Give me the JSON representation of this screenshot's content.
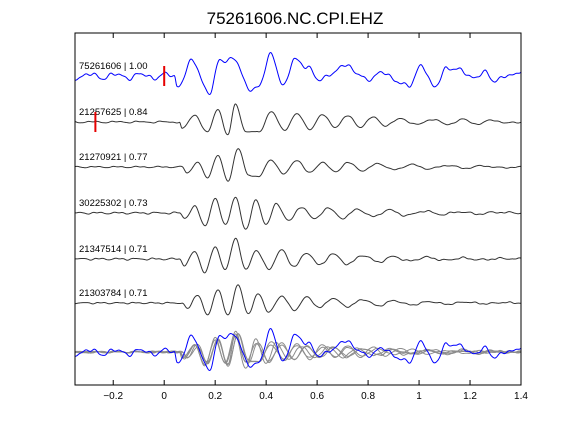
{
  "chart_data": {
    "type": "line",
    "title": "75261606.NC.CPI.EHZ",
    "xlabel": "",
    "ylabel": "",
    "xlim": [
      -0.35,
      1.4
    ],
    "xticks": [
      -0.2,
      0,
      0.2,
      0.4,
      0.6,
      0.8,
      1,
      1.2,
      1.4
    ],
    "xtick_labels": [
      "−0.2",
      "0",
      "0.2",
      "0.4",
      "0.6",
      "0.8",
      "1",
      "1.2",
      "1.4"
    ],
    "grid": false,
    "legend": "none",
    "colors": {
      "reference": "#0000ff",
      "match": "#333333",
      "stack": "#8c8c8c",
      "pick": "#e60000"
    },
    "series": [
      {
        "name": "75261606 | 1.00",
        "color": "#0000ff",
        "pick_time": 0.0,
        "onset": 0.04,
        "noise": 0.18,
        "amplitude": 1.0,
        "waveform": {
          "t": [
            0.05,
            0.11,
            0.18,
            0.22,
            0.27,
            0.33,
            0.37,
            0.42,
            0.47,
            0.51,
            0.56,
            0.61,
            0.66,
            0.71,
            0.76,
            0.8,
            0.86,
            0.91,
            0.96,
            1.01,
            1.06,
            1.11,
            1.16,
            1.21,
            1.26,
            1.3,
            1.35,
            1.4
          ],
          "a": [
            -0.35,
            0.5,
            -0.6,
            0.55,
            0.75,
            -0.5,
            -0.35,
            0.75,
            -0.3,
            0.55,
            0.45,
            -0.25,
            0.2,
            0.35,
            0.2,
            -0.25,
            0.25,
            -0.3,
            -0.28,
            0.3,
            -0.32,
            0.2,
            0.35,
            -0.18,
            0.25,
            -0.3,
            0.1,
            0.12
          ]
        }
      },
      {
        "name": "21257625 | 0.84",
        "color": "#333333",
        "pick_time": -0.27,
        "onset": 0.06,
        "noise": 0.05,
        "amplitude": 0.9,
        "waveform": {
          "t": [
            0.07,
            0.12,
            0.17,
            0.21,
            0.25,
            0.28,
            0.32,
            0.37,
            0.42,
            0.47,
            0.52,
            0.57,
            0.62,
            0.67,
            0.72,
            0.77,
            0.82,
            0.87,
            0.93,
            0.99,
            1.05,
            1.11,
            1.17,
            1.23,
            1.29,
            1.35,
            1.4
          ],
          "a": [
            -0.3,
            0.3,
            -0.45,
            0.55,
            -0.55,
            0.75,
            -0.4,
            -0.45,
            0.45,
            -0.35,
            0.35,
            -0.3,
            0.3,
            -0.2,
            0.25,
            -0.2,
            0.2,
            -0.15,
            0.15,
            -0.12,
            0.12,
            -0.1,
            0.1,
            -0.08,
            0.08,
            -0.05,
            0.0
          ]
        }
      },
      {
        "name": "21270921 | 0.77",
        "color": "#333333",
        "pick_time": null,
        "onset": 0.07,
        "noise": 0.04,
        "amplitude": 0.9,
        "waveform": {
          "t": [
            0.09,
            0.13,
            0.17,
            0.21,
            0.25,
            0.29,
            0.33,
            0.37,
            0.42,
            0.47,
            0.52,
            0.57,
            0.62,
            0.67,
            0.72,
            0.78,
            0.84,
            0.9,
            0.97,
            1.04,
            1.11,
            1.18,
            1.25,
            1.32,
            1.4
          ],
          "a": [
            -0.25,
            0.2,
            -0.45,
            0.5,
            -0.6,
            0.8,
            -0.35,
            -0.4,
            0.3,
            -0.3,
            0.3,
            -0.25,
            0.2,
            -0.2,
            0.18,
            -0.15,
            0.15,
            -0.12,
            0.1,
            -0.08,
            0.07,
            -0.05,
            0.05,
            -0.03,
            0.0
          ]
        }
      },
      {
        "name": "30225302 | 0.73",
        "color": "#333333",
        "pick_time": null,
        "onset": 0.06,
        "noise": 0.05,
        "amplitude": 0.95,
        "waveform": {
          "t": [
            0.08,
            0.12,
            0.16,
            0.2,
            0.24,
            0.28,
            0.32,
            0.36,
            0.4,
            0.44,
            0.49,
            0.54,
            0.59,
            0.64,
            0.7,
            0.76,
            0.82,
            0.88,
            0.95,
            1.02,
            1.09,
            1.16,
            1.23,
            1.3,
            1.4
          ],
          "a": [
            -0.2,
            0.25,
            -0.5,
            0.55,
            -0.45,
            0.6,
            -0.65,
            0.5,
            -0.45,
            0.35,
            -0.3,
            0.25,
            -0.25,
            0.2,
            -0.2,
            0.15,
            -0.15,
            0.12,
            -0.1,
            0.08,
            -0.06,
            0.05,
            -0.04,
            0.03,
            0.0
          ]
        }
      },
      {
        "name": "21347514 | 0.71",
        "color": "#333333",
        "pick_time": null,
        "onset": 0.06,
        "noise": 0.05,
        "amplitude": 0.95,
        "waveform": {
          "t": [
            0.08,
            0.12,
            0.16,
            0.2,
            0.24,
            0.28,
            0.32,
            0.36,
            0.41,
            0.46,
            0.51,
            0.56,
            0.61,
            0.66,
            0.72,
            0.78,
            0.84,
            0.9,
            0.96,
            1.03,
            1.1,
            1.17,
            1.24,
            1.32,
            1.4
          ],
          "a": [
            -0.25,
            0.3,
            -0.55,
            0.5,
            -0.45,
            0.85,
            -0.45,
            0.35,
            -0.4,
            0.35,
            -0.3,
            0.25,
            -0.25,
            0.2,
            -0.2,
            0.15,
            -0.12,
            0.1,
            -0.08,
            0.07,
            -0.05,
            0.04,
            -0.03,
            0.02,
            0.0
          ]
        }
      },
      {
        "name": "21303784 | 0.71",
        "color": "#333333",
        "pick_time": null,
        "onset": 0.07,
        "noise": 0.04,
        "amplitude": 0.9,
        "waveform": {
          "t": [
            0.09,
            0.13,
            0.17,
            0.21,
            0.25,
            0.29,
            0.33,
            0.37,
            0.41,
            0.46,
            0.51,
            0.56,
            0.61,
            0.66,
            0.72,
            0.78,
            0.84,
            0.9,
            0.97,
            1.04,
            1.11,
            1.18,
            1.26,
            1.33,
            1.4
          ],
          "a": [
            -0.25,
            0.35,
            -0.5,
            0.55,
            -0.5,
            0.75,
            -0.45,
            0.4,
            -0.4,
            0.3,
            -0.3,
            0.25,
            -0.2,
            0.2,
            -0.15,
            0.15,
            -0.12,
            0.1,
            -0.08,
            0.06,
            -0.05,
            0.04,
            -0.03,
            0.02,
            0.0
          ]
        }
      }
    ]
  }
}
